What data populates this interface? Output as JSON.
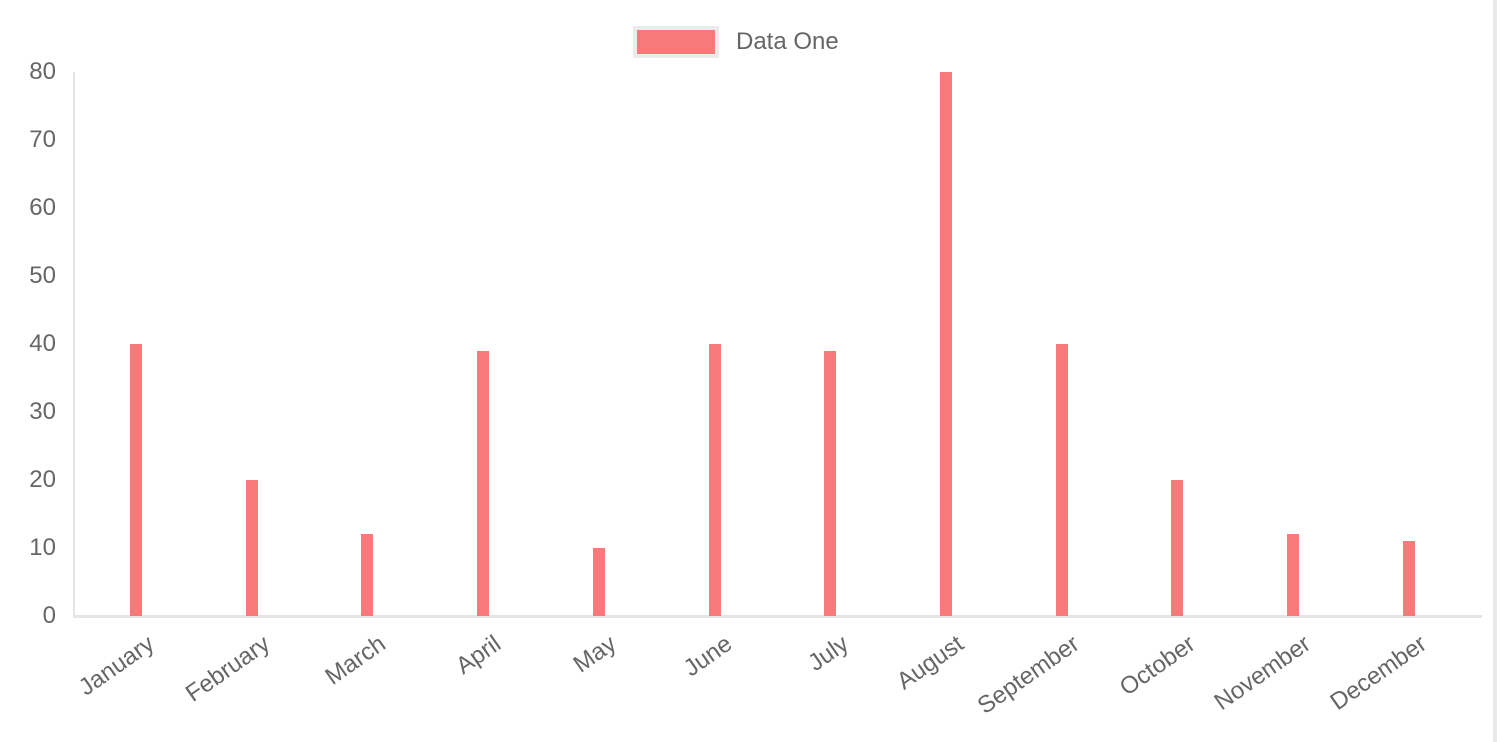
{
  "page": {
    "background_color": "#ffffff"
  },
  "legend": {
    "label": "Data One",
    "swatch_color": "#f87979",
    "swatch_border_color": "#ececec",
    "position": "top-center"
  },
  "chart_data": {
    "type": "bar",
    "title": "",
    "xlabel": "",
    "ylabel": "",
    "categories": [
      "January",
      "February",
      "March",
      "April",
      "May",
      "June",
      "July",
      "August",
      "September",
      "October",
      "November",
      "December"
    ],
    "series": [
      {
        "name": "Data One",
        "color": "#f87979",
        "values": [
          40,
          20,
          12,
          39,
          10,
          40,
          39,
          80,
          40,
          20,
          12,
          11
        ]
      }
    ],
    "ylim": [
      0,
      80
    ],
    "yticks": [
      0,
      10,
      20,
      30,
      40,
      50,
      60,
      70,
      80
    ],
    "grid": false,
    "legend_position": "top",
    "x_label_rotation_deg": -35,
    "axis_line_color": "#e5e5e5",
    "tick_text_color": "#666666"
  }
}
